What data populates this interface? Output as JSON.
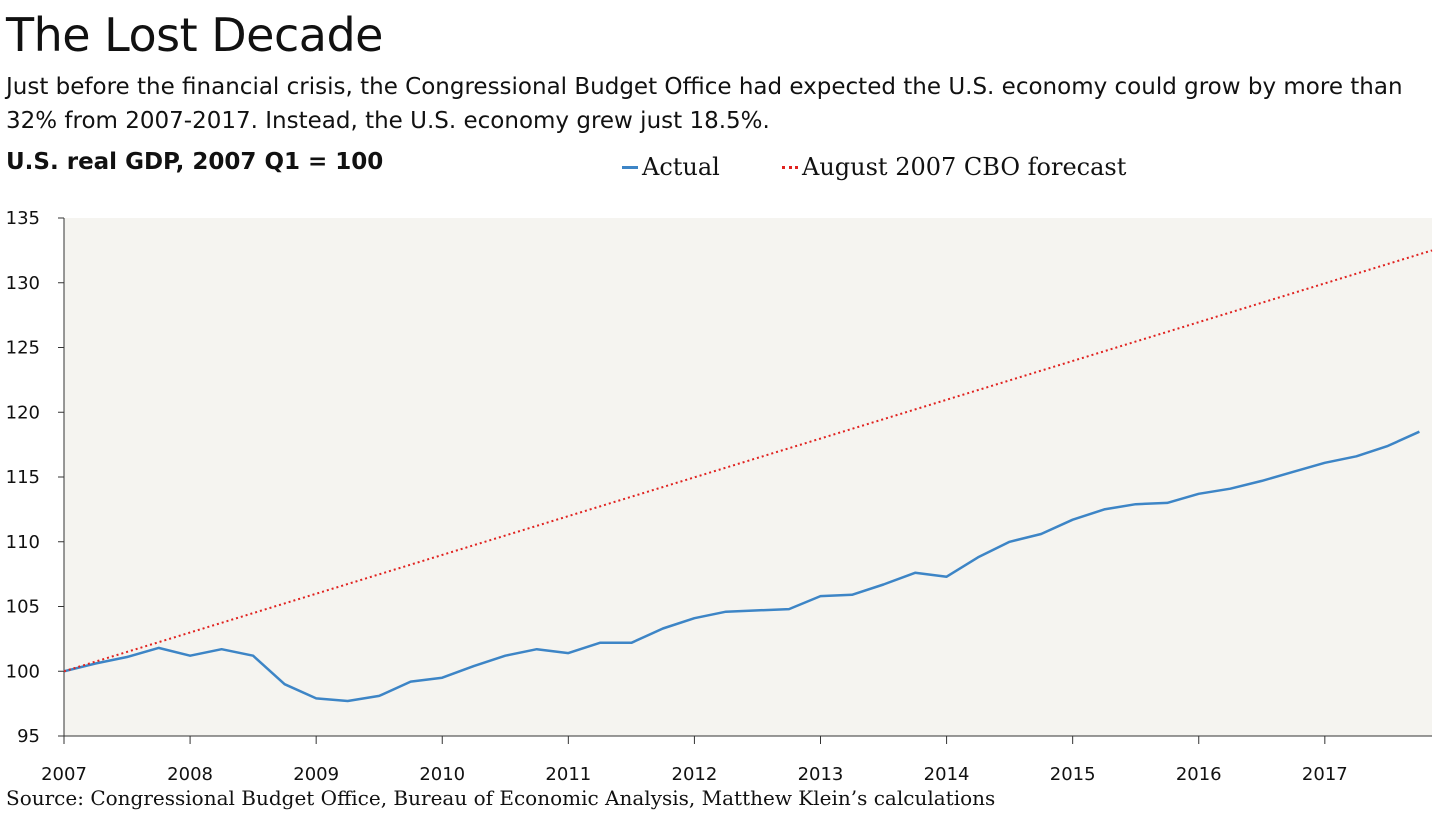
{
  "header": {
    "title": "The Lost Decade",
    "subtitle": "Just before the financial crisis, the Congressional Budget Office had expected the U.S. economy could grow by more than 32% from 2007-2017. Instead, the U.S. economy grew just 18.5%.",
    "y_axis_title": "U.S. real GDP, 2007 Q1 = 100"
  },
  "legend": {
    "actual_label": "Actual",
    "forecast_label": "August 2007 CBO forecast"
  },
  "footer": {
    "source": "Source: Congressional Budget Office, Bureau of Economic Analysis, Matthew Klein’s calculations"
  },
  "chart_data": {
    "type": "line",
    "title": "The Lost Decade",
    "ylabel": "U.S. real GDP, 2007 Q1 = 100",
    "xlabel": "",
    "xlim": [
      2007.0,
      2017.85
    ],
    "ylim": [
      95,
      135
    ],
    "x_ticks": [
      2007,
      2008,
      2009,
      2010,
      2011,
      2012,
      2013,
      2014,
      2015,
      2016,
      2017
    ],
    "y_ticks": [
      95,
      100,
      105,
      110,
      115,
      120,
      125,
      130,
      135
    ],
    "grid": false,
    "legend_position": "top-center",
    "colors": {
      "actual": "#3d85c6",
      "forecast": "#e0221f",
      "plot_background": "#f5f4f0"
    },
    "series": [
      {
        "name": "Actual",
        "style": "solid",
        "x": [
          2007.0,
          2007.25,
          2007.5,
          2007.75,
          2008.0,
          2008.25,
          2008.5,
          2008.75,
          2009.0,
          2009.25,
          2009.5,
          2009.75,
          2010.0,
          2010.25,
          2010.5,
          2010.75,
          2011.0,
          2011.25,
          2011.5,
          2011.75,
          2012.0,
          2012.25,
          2012.5,
          2012.75,
          2013.0,
          2013.25,
          2013.5,
          2013.75,
          2014.0,
          2014.25,
          2014.5,
          2014.75,
          2015.0,
          2015.25,
          2015.5,
          2015.75,
          2016.0,
          2016.25,
          2016.5,
          2016.75,
          2017.0,
          2017.25,
          2017.5,
          2017.75
        ],
        "values": [
          100.0,
          100.6,
          101.1,
          101.8,
          101.2,
          101.7,
          101.2,
          99.0,
          97.9,
          97.7,
          98.1,
          99.2,
          99.5,
          100.4,
          101.2,
          101.7,
          101.4,
          102.2,
          102.2,
          103.3,
          104.1,
          104.6,
          104.7,
          104.8,
          105.8,
          105.9,
          106.7,
          107.6,
          107.3,
          108.8,
          110.0,
          110.6,
          111.7,
          112.5,
          112.9,
          113.0,
          113.7,
          114.1,
          114.7,
          115.4,
          116.1,
          116.6,
          117.4,
          118.5
        ]
      },
      {
        "name": "August 2007 CBO forecast",
        "style": "dotted",
        "x": [
          2007.0,
          2017.85
        ],
        "values": [
          100.0,
          132.5
        ]
      }
    ]
  }
}
